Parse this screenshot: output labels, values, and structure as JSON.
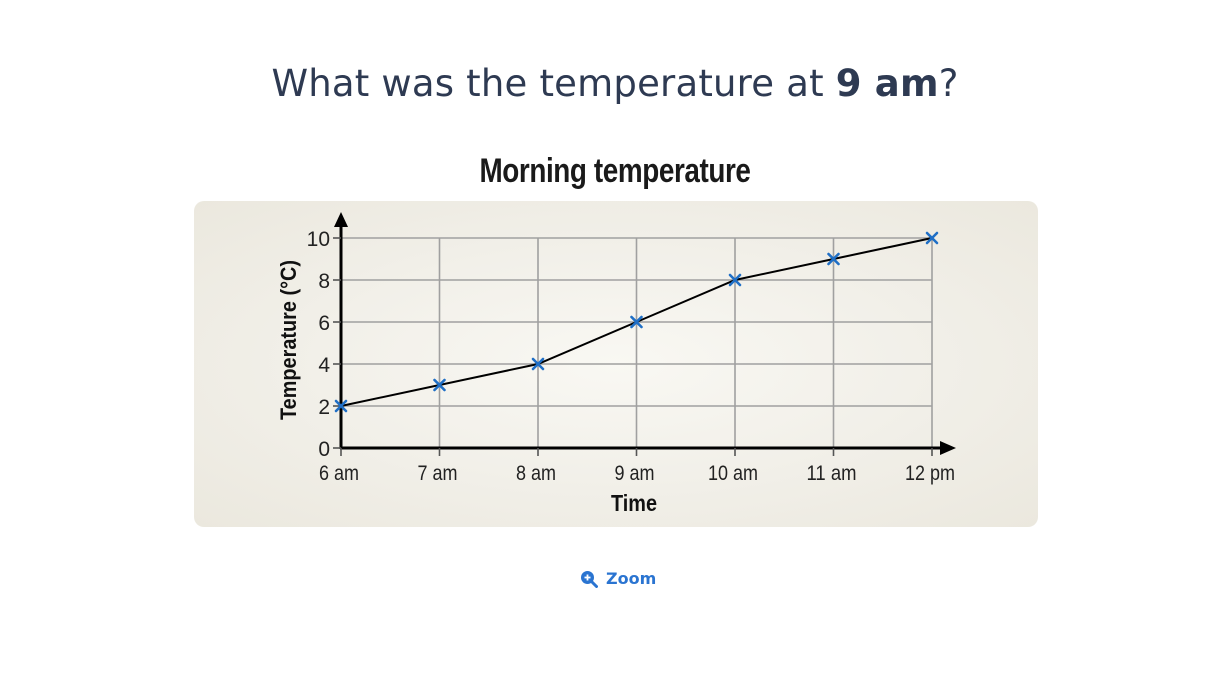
{
  "question": {
    "prefix": "What was the temperature at ",
    "emphasis": "9 am",
    "suffix": "?"
  },
  "zoom": {
    "label": "Zoom",
    "icon": "zoom-in-icon"
  },
  "colors": {
    "marker": "#1f6fc6",
    "line": "#000000",
    "grid": "#a0a0a0",
    "accent": "#2a74d1"
  },
  "chart_data": {
    "type": "line",
    "title": "Morning temperature",
    "xlabel": "Time",
    "ylabel": "Temperature (°C)",
    "categories": [
      "6 am",
      "7 am",
      "8 am",
      "9 am",
      "10 am",
      "11 am",
      "12 pm"
    ],
    "values": [
      2,
      3,
      4,
      6,
      8,
      9,
      10
    ],
    "yticks": [
      0,
      2,
      4,
      6,
      8,
      10
    ],
    "ylim": [
      0,
      10
    ],
    "grid": true,
    "marker": "x"
  }
}
